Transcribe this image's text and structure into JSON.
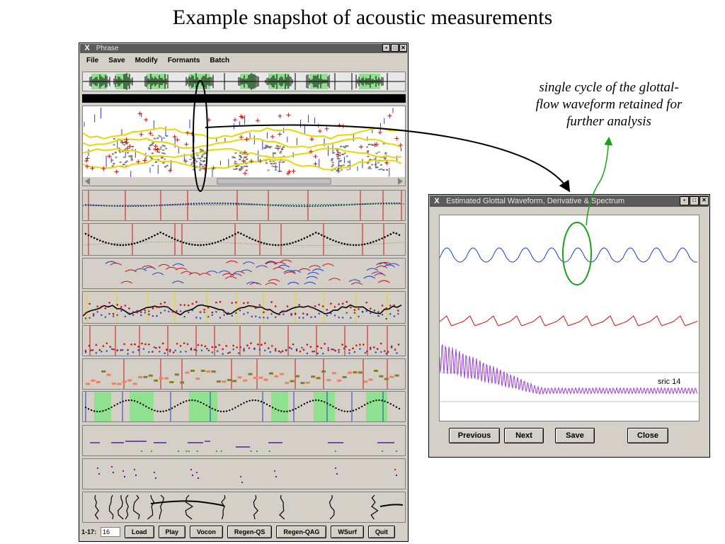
{
  "slide": {
    "title": "Example snapshot of acoustic measurements",
    "annotation_line1": "single cycle of the glottal-",
    "annotation_line2": "flow waveform retained for",
    "annotation_line3": "further analysis"
  },
  "phrase_window": {
    "title": "Phrase",
    "menu": [
      "File",
      "Save",
      "Modify",
      "Formants",
      "Batch"
    ],
    "range_label": "1-17:",
    "range_value": "16",
    "buttons": [
      "Load",
      "Play",
      "Vocon",
      "Regen-QS",
      "Regen-QAG",
      "WSurf",
      "Quit"
    ]
  },
  "glottal_window": {
    "title": "Estimated Glottal Waveform, Derivative & Spectrum",
    "spectrum_label": "sric 14",
    "buttons": [
      "Previous",
      "Next",
      "Save",
      "Close"
    ]
  },
  "colors": {
    "window_bg": "#d4d0c8",
    "titlebar": "#5a5a5a",
    "glottal_waveform": "#1a3fc0",
    "derivative": "#d01010",
    "spectrum": "#9a40d0",
    "highlight_circle": "#1aa01a"
  }
}
